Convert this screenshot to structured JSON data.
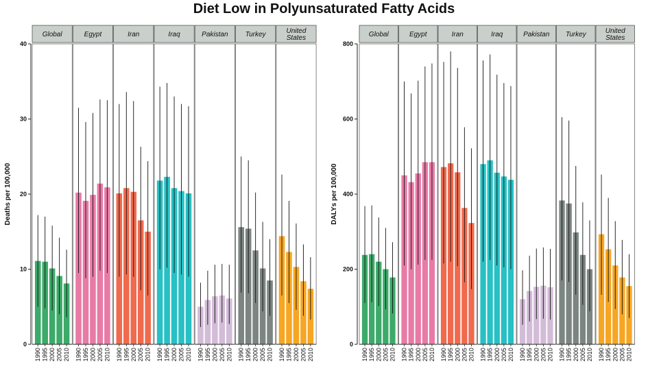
{
  "title": "Diet Low in Polyunsaturated Fatty Acids",
  "colors": {
    "Global": "#3daa6a",
    "Egypt": "#e87aa6",
    "Iran": "#f06a4e",
    "Iraq": "#27c0c4",
    "Pakistan": "#d3bcd8",
    "Turkey": "#7c8582",
    "United States": "#f6a623"
  },
  "chart_data": [
    {
      "type": "bar",
      "ylabel": "Deaths per 100,000",
      "ylim": [
        0,
        40
      ],
      "yticks": [
        0,
        10,
        20,
        30,
        40
      ],
      "years": [
        "1990",
        "1995",
        "2000",
        "2005",
        "2010"
      ],
      "series": [
        {
          "name": "Global",
          "values": [
            11.1,
            11.0,
            10.1,
            9.1,
            8.1
          ],
          "upper": [
            17.2,
            17.0,
            15.8,
            14.2,
            12.6
          ],
          "lower": [
            5.0,
            4.8,
            4.5,
            4.0,
            3.6
          ]
        },
        {
          "name": "Egypt",
          "values": [
            20.2,
            19.1,
            19.9,
            21.4,
            20.9
          ],
          "upper": [
            31.5,
            29.6,
            30.8,
            32.6,
            32.5
          ],
          "lower": [
            9.5,
            8.8,
            9.0,
            9.8,
            9.5
          ]
        },
        {
          "name": "Iran",
          "values": [
            20.1,
            20.8,
            20.3,
            16.5,
            15.0
          ],
          "upper": [
            32.0,
            33.6,
            32.4,
            26.3,
            24.4
          ],
          "lower": [
            9.0,
            9.3,
            9.0,
            7.2,
            6.5
          ]
        },
        {
          "name": "Iraq",
          "values": [
            21.8,
            22.3,
            20.8,
            20.4,
            20.1
          ],
          "upper": [
            34.3,
            34.8,
            33.0,
            32.0,
            31.7
          ],
          "lower": [
            10.0,
            10.2,
            9.5,
            9.3,
            9.0
          ]
        },
        {
          "name": "Pakistan",
          "values": [
            5.0,
            5.9,
            6.4,
            6.5,
            6.1
          ],
          "upper": [
            8.2,
            9.8,
            10.6,
            10.7,
            10.6
          ],
          "lower": [
            2.3,
            2.6,
            2.8,
            2.9,
            2.7
          ]
        },
        {
          "name": "Turkey",
          "values": [
            15.6,
            15.4,
            12.5,
            10.1,
            8.5
          ],
          "upper": [
            25.0,
            24.5,
            20.2,
            16.3,
            14.0
          ],
          "lower": [
            6.9,
            6.8,
            5.5,
            4.4,
            3.8
          ]
        },
        {
          "name": "United States",
          "values": [
            14.4,
            12.3,
            10.3,
            8.4,
            7.4
          ],
          "upper": [
            22.6,
            19.1,
            16.1,
            13.3,
            11.6
          ],
          "lower": [
            6.5,
            5.5,
            4.6,
            3.8,
            3.3
          ]
        }
      ]
    },
    {
      "type": "bar",
      "ylabel": "DALYs per 100,000",
      "ylim": [
        0,
        800
      ],
      "yticks": [
        0,
        200,
        400,
        600,
        800
      ],
      "years": [
        "1990",
        "1995",
        "2000",
        "2005",
        "2010"
      ],
      "series": [
        {
          "name": "Global",
          "values": [
            238,
            240,
            220,
            200,
            178
          ],
          "upper": [
            368,
            370,
            338,
            310,
            272
          ],
          "lower": [
            110,
            112,
            102,
            93,
            82
          ]
        },
        {
          "name": "Egypt",
          "values": [
            450,
            432,
            455,
            485,
            485
          ],
          "upper": [
            700,
            668,
            702,
            740,
            748
          ],
          "lower": [
            210,
            200,
            212,
            225,
            225
          ]
        },
        {
          "name": "Iran",
          "values": [
            472,
            482,
            458,
            363,
            323
          ],
          "upper": [
            752,
            780,
            736,
            578,
            522
          ],
          "lower": [
            215,
            220,
            208,
            165,
            147
          ]
        },
        {
          "name": "Iraq",
          "values": [
            480,
            490,
            457,
            447,
            438
          ],
          "upper": [
            756,
            772,
            718,
            696,
            688
          ],
          "lower": [
            220,
            225,
            210,
            205,
            200
          ]
        },
        {
          "name": "Pakistan",
          "values": [
            120,
            142,
            153,
            156,
            152
          ],
          "upper": [
            197,
            236,
            255,
            258,
            254
          ],
          "lower": [
            52,
            61,
            67,
            68,
            66
          ]
        },
        {
          "name": "Turkey",
          "values": [
            383,
            375,
            298,
            238,
            200
          ],
          "upper": [
            605,
            596,
            475,
            378,
            330
          ],
          "lower": [
            170,
            166,
            132,
            105,
            88
          ]
        },
        {
          "name": "United States",
          "values": [
            293,
            253,
            210,
            178,
            155
          ],
          "upper": [
            452,
            390,
            328,
            278,
            240
          ],
          "lower": [
            132,
            113,
            94,
            80,
            70
          ]
        }
      ]
    }
  ]
}
